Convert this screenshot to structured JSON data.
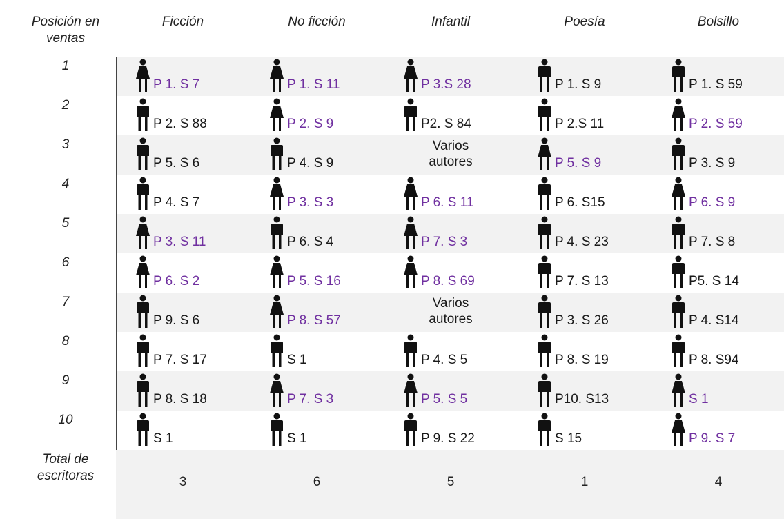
{
  "table": {
    "header": [
      "Posición en ventas",
      "Ficción",
      "No ficción",
      "Infantil",
      "Poesía",
      "Bolsillo"
    ],
    "rows": [
      {
        "position": "1",
        "cells": [
          {
            "label": "P 1. S 7",
            "icon": "woman",
            "color": "#7030a0"
          },
          {
            "label": "P 1. S 11",
            "icon": "woman",
            "color": "#7030a0"
          },
          {
            "label": "P 3.S 28",
            "icon": "woman",
            "color": "#7030a0"
          },
          {
            "label": "P 1. S 9",
            "icon": "man",
            "color": "#1a1a1a"
          },
          {
            "label": "P 1. S 59",
            "icon": "man",
            "color": "#1a1a1a"
          }
        ]
      },
      {
        "position": "2",
        "cells": [
          {
            "label": "P 2. S 88",
            "icon": "man",
            "color": "#1a1a1a"
          },
          {
            "label": "P 2. S 9",
            "icon": "woman",
            "color": "#7030a0"
          },
          {
            "label": "P2. S 84",
            "icon": "man",
            "color": "#1a1a1a"
          },
          {
            "label": "P 2.S 11",
            "icon": "man",
            "color": "#1a1a1a"
          },
          {
            "label": "P 2. S 59",
            "icon": "woman",
            "color": "#7030a0"
          }
        ]
      },
      {
        "position": "3",
        "cells": [
          {
            "label": "P 5. S 6",
            "icon": "man",
            "color": "#1a1a1a"
          },
          {
            "label": "P 4. S 9",
            "icon": "man",
            "color": "#1a1a1a"
          },
          {
            "label": "Varios autores",
            "icon": null,
            "color": "#1a1a1a"
          },
          {
            "label": "P 5. S 9",
            "icon": "woman",
            "color": "#7030a0"
          },
          {
            "label": "P 3. S 9",
            "icon": "man",
            "color": "#1a1a1a"
          }
        ]
      },
      {
        "position": "4",
        "cells": [
          {
            "label": "P 4. S 7",
            "icon": "man",
            "color": "#1a1a1a"
          },
          {
            "label": "P 3. S 3",
            "icon": "woman",
            "color": "#7030a0"
          },
          {
            "label": "P 6. S 11",
            "icon": "woman",
            "color": "#7030a0"
          },
          {
            "label": "P 6. S15",
            "icon": "man",
            "color": "#1a1a1a"
          },
          {
            "label": "P 6. S 9",
            "icon": "woman",
            "color": "#7030a0"
          }
        ]
      },
      {
        "position": "5",
        "cells": [
          {
            "label": "P 3. S 11",
            "icon": "woman",
            "color": "#7030a0"
          },
          {
            "label": "P 6. S 4",
            "icon": "man",
            "color": "#1a1a1a"
          },
          {
            "label": "P 7. S 3",
            "icon": "woman",
            "color": "#7030a0"
          },
          {
            "label": "P 4. S 23",
            "icon": "man",
            "color": "#1a1a1a"
          },
          {
            "label": "P 7. S 8",
            "icon": "man",
            "color": "#1a1a1a"
          }
        ]
      },
      {
        "position": "6",
        "cells": [
          {
            "label": "P 6. S 2",
            "icon": "woman",
            "color": "#7030a0"
          },
          {
            "label": "P 5. S 16",
            "icon": "woman",
            "color": "#7030a0"
          },
          {
            "label": "P 8. S 69",
            "icon": "woman",
            "color": "#7030a0"
          },
          {
            "label": "P 7. S 13",
            "icon": "man",
            "color": "#1a1a1a"
          },
          {
            "label": "P5. S 14",
            "icon": "man",
            "color": "#1a1a1a"
          }
        ]
      },
      {
        "position": "7",
        "cells": [
          {
            "label": "P 9. S 6",
            "icon": "man",
            "color": "#1a1a1a"
          },
          {
            "label": "P 8. S 57",
            "icon": "woman",
            "color": "#7030a0"
          },
          {
            "label": "Varios autores",
            "icon": null,
            "color": "#1a1a1a"
          },
          {
            "label": "P 3. S 26",
            "icon": "man",
            "color": "#1a1a1a"
          },
          {
            "label": "P 4. S14",
            "icon": "man",
            "color": "#1a1a1a"
          }
        ]
      },
      {
        "position": "8",
        "cells": [
          {
            "label": "P 7. S 17",
            "icon": "man",
            "color": "#1a1a1a"
          },
          {
            "label": "S 1",
            "icon": "man",
            "color": "#1a1a1a"
          },
          {
            "label": "P 4. S 5",
            "icon": "man",
            "color": "#1a1a1a"
          },
          {
            "label": "P 8. S 19",
            "icon": "man",
            "color": "#1a1a1a"
          },
          {
            "label": "P 8. S94",
            "icon": "man",
            "color": "#1a1a1a"
          }
        ]
      },
      {
        "position": "9",
        "cells": [
          {
            "label": "P 8. S 18",
            "icon": "man",
            "color": "#1a1a1a"
          },
          {
            "label": "P 7. S 3",
            "icon": "woman",
            "color": "#7030a0"
          },
          {
            "label": "P 5. S 5",
            "icon": "woman",
            "color": "#7030a0"
          },
          {
            "label": "P10. S13",
            "icon": "man",
            "color": "#1a1a1a"
          },
          {
            "label": "S 1",
            "icon": "woman",
            "color": "#7030a0"
          }
        ]
      },
      {
        "position": "10",
        "cells": [
          {
            "label": "S 1",
            "icon": "man",
            "color": "#1a1a1a"
          },
          {
            "label": "S 1",
            "icon": "man",
            "color": "#1a1a1a"
          },
          {
            "label": "P 9. S 22",
            "icon": "man",
            "color": "#1a1a1a"
          },
          {
            "label": "S 15",
            "icon": "man",
            "color": "#1a1a1a"
          },
          {
            "label": "P 9. S 7",
            "icon": "woman",
            "color": "#7030a0"
          }
        ]
      }
    ],
    "total": {
      "label": "Total de escritoras",
      "values": [
        3,
        6,
        5,
        1,
        4
      ]
    }
  }
}
